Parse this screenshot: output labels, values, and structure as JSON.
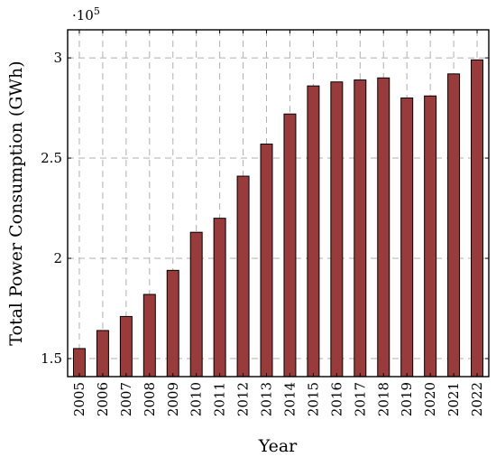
{
  "chart_data": {
    "type": "bar",
    "title": "",
    "xlabel": "Year",
    "ylabel": "Total Power Consumption (GWh)",
    "y_exponent_label": "·10",
    "y_exponent_power": "5",
    "categories": [
      "2005",
      "2006",
      "2007",
      "2008",
      "2009",
      "2010",
      "2011",
      "2012",
      "2013",
      "2014",
      "2015",
      "2016",
      "2017",
      "2018",
      "2019",
      "2020",
      "2021",
      "2022"
    ],
    "values": [
      155000,
      164000,
      171000,
      182000,
      194000,
      213000,
      220000,
      241000,
      257000,
      272000,
      286000,
      288000,
      289000,
      290000,
      280000,
      281000,
      292000,
      299000
    ],
    "y_ticks": [
      150000,
      200000,
      250000,
      300000
    ],
    "y_tick_labels": [
      "1.5",
      "2",
      "2.5",
      "3"
    ],
    "ylim": [
      141000,
      314000
    ],
    "grid": true,
    "bar_color": "#9a3b3b"
  }
}
